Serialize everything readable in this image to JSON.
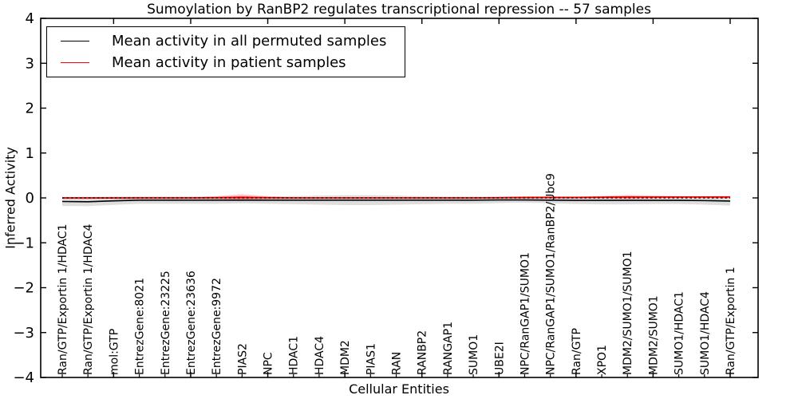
{
  "legend": {
    "entries": [
      {
        "label": "Mean activity in all permuted samples",
        "color": "#000000"
      },
      {
        "label": "Mean activity in patient samples",
        "color": "#ff0000"
      }
    ],
    "position": "upper left"
  },
  "chart_data": {
    "type": "line",
    "title": "Sumoylation by RanBP2 regulates transcriptional repression -- 57 samples",
    "xlabel": "Cellular Entities",
    "ylabel": "Inferred Activity",
    "ylim": [
      -4,
      4
    ],
    "ytick_values": [
      4,
      3,
      2,
      1,
      0,
      -1,
      -2,
      -3,
      -4
    ],
    "ytick_labels": [
      "4",
      "3",
      "2",
      "1",
      "0",
      "−1",
      "−2",
      "−3",
      "−4"
    ],
    "grid": false,
    "legend_position": "upper left",
    "categories": [
      "Ran/GTP/Exportin 1/HDAC1",
      "Ran/GTP/Exportin 1/HDAC4",
      "mol:GTP",
      "EntrezGene:8021",
      "EntrezGene:23225",
      "EntrezGene:23636",
      "EntrezGene:9972",
      "PIAS2",
      "NPC",
      "HDAC1",
      "HDAC4",
      "MDM2",
      "PIAS1",
      "RAN",
      "RANBP2",
      "RANGAP1",
      "SUMO1",
      "UBE2I",
      "NPC/RanGAP1/SUMO1",
      "NPC/RanGAP1/SUMO1/RanBP2/Ubc9",
      "Ran/GTP",
      "XPO1",
      "MDM2/SUMO1/SUMO1",
      "MDM2/SUMO1",
      "SUMO1/HDAC1",
      "SUMO1/HDAC4",
      "Ran/GTP/Exportin 1"
    ],
    "x_major_tick_indices": [
      2,
      5,
      8,
      11,
      14,
      17,
      20,
      23,
      26
    ],
    "series": [
      {
        "name": "Mean activity in all permuted samples",
        "color": "#000000",
        "values": [
          -0.08,
          -0.085,
          -0.065,
          -0.05,
          -0.05,
          -0.05,
          -0.05,
          -0.05,
          -0.05,
          -0.05,
          -0.05,
          -0.05,
          -0.05,
          -0.05,
          -0.05,
          -0.05,
          -0.05,
          -0.045,
          -0.045,
          -0.05,
          -0.055,
          -0.055,
          -0.055,
          -0.055,
          -0.055,
          -0.06,
          -0.07
        ],
        "band_half_widths": [
          0.1,
          0.1,
          0.09,
          0.08,
          0.08,
          0.08,
          0.08,
          0.07,
          0.08,
          0.09,
          0.1,
          0.11,
          0.11,
          0.1,
          0.09,
          0.08,
          0.08,
          0.07,
          0.06,
          0.07,
          0.08,
          0.09,
          0.09,
          0.08,
          0.08,
          0.09,
          0.1
        ],
        "band_color": "#000000",
        "band_opacity": 0.13
      },
      {
        "name": "Mean activity in patient samples",
        "color": "#ff0000",
        "values": [
          0.0,
          0.0,
          0.0,
          0.0,
          0.0,
          0.0,
          0.005,
          0.01,
          0.005,
          0.0,
          0.0,
          0.0,
          0.0,
          0.0,
          0.0,
          0.0,
          0.0,
          0.005,
          0.01,
          0.01,
          0.01,
          0.015,
          0.02,
          0.02,
          0.02,
          0.02,
          0.02
        ],
        "band_half_widths": [
          0.02,
          0.02,
          0.02,
          0.02,
          0.02,
          0.02,
          0.035,
          0.08,
          0.035,
          0.015,
          0.015,
          0.015,
          0.015,
          0.015,
          0.015,
          0.015,
          0.015,
          0.02,
          0.025,
          0.025,
          0.02,
          0.03,
          0.05,
          0.035,
          0.025,
          0.025,
          0.03
        ],
        "band_color": "#ff0000",
        "band_opacity": 0.14
      }
    ],
    "zero_line": {
      "value": 0,
      "style": "dashed",
      "color": "#000000"
    }
  }
}
